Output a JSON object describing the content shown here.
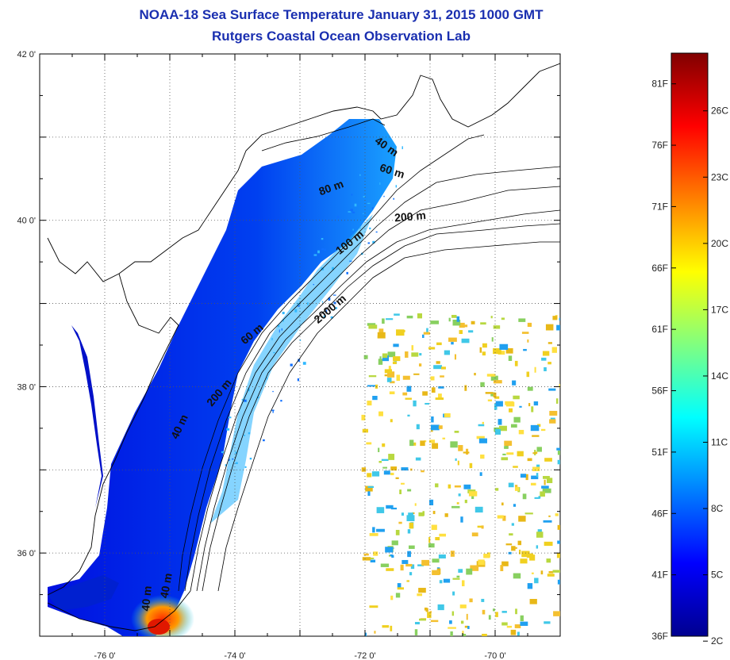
{
  "title": {
    "line1": "NOAA-18 Sea Surface Temperature January 31, 2015 1000 GMT",
    "line2": "Rutgers Coastal Ocean Observation Lab"
  },
  "map": {
    "lon_range": [
      -77,
      -69
    ],
    "lat_range": [
      35,
      42
    ],
    "lon_ticks": [
      {
        "value": -76,
        "label": "-76 0'"
      },
      {
        "value": -74,
        "label": "-74 0'"
      },
      {
        "value": -72,
        "label": "-72 0'"
      },
      {
        "value": -70,
        "label": "-70 0'"
      }
    ],
    "lat_ticks": [
      {
        "value": 42,
        "label": "42 0'"
      },
      {
        "value": 40,
        "label": "40 0'"
      },
      {
        "value": 38,
        "label": "38 0'"
      },
      {
        "value": 36,
        "label": "36 0'"
      }
    ],
    "isobath_labels": [
      {
        "text": "40 m",
        "lon": -71.7,
        "lat": 40.85,
        "angle": 35
      },
      {
        "text": "60 m",
        "lon": -71.6,
        "lat": 40.55,
        "angle": 18
      },
      {
        "text": "80 m",
        "lon": -72.5,
        "lat": 40.35,
        "angle": -20
      },
      {
        "text": "200 m",
        "lon": -71.3,
        "lat": 40.0,
        "angle": -5
      },
      {
        "text": "100 m",
        "lon": -72.2,
        "lat": 39.7,
        "angle": -38
      },
      {
        "text": "2000 m",
        "lon": -72.5,
        "lat": 38.9,
        "angle": -40
      },
      {
        "text": "60 m",
        "lon": -73.7,
        "lat": 38.6,
        "angle": -40
      },
      {
        "text": "200 m",
        "lon": -74.2,
        "lat": 37.9,
        "angle": -50
      },
      {
        "text": "40 m",
        "lon": -74.8,
        "lat": 37.5,
        "angle": -65
      },
      {
        "text": "40 m",
        "lon": -75.0,
        "lat": 35.6,
        "angle": -80
      },
      {
        "text": "40 m",
        "lon": -75.3,
        "lat": 35.45,
        "angle": -85
      }
    ]
  },
  "colorbar": {
    "colors": [
      "#00008f",
      "#0000ff",
      "#0080ff",
      "#00ffff",
      "#80ff80",
      "#ffff00",
      "#ff8000",
      "#ff0000",
      "#800000"
    ],
    "fahrenheit_labels": [
      {
        "label": "81F",
        "value": 81
      },
      {
        "label": "76F",
        "value": 76
      },
      {
        "label": "71F",
        "value": 71
      },
      {
        "label": "66F",
        "value": 66
      },
      {
        "label": "61F",
        "value": 61
      },
      {
        "label": "56F",
        "value": 56
      },
      {
        "label": "51F",
        "value": 51
      },
      {
        "label": "46F",
        "value": 46
      },
      {
        "label": "41F",
        "value": 41
      },
      {
        "label": "36F",
        "value": 36
      }
    ],
    "celsius_labels": [
      {
        "label": "26C",
        "value": 26
      },
      {
        "label": "23C",
        "value": 23
      },
      {
        "label": "20C",
        "value": 20
      },
      {
        "label": "17C",
        "value": 17
      },
      {
        "label": "14C",
        "value": 14
      },
      {
        "label": "11C",
        "value": 11
      },
      {
        "label": "8C",
        "value": 8
      },
      {
        "label": "5C",
        "value": 5
      },
      {
        "label": "2C",
        "value": 2
      }
    ]
  }
}
